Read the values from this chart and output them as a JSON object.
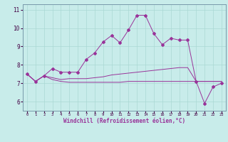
{
  "xlabel": "Windchill (Refroidissement éolien,°C)",
  "background_color": "#c8ecea",
  "grid_color": "#aad8d4",
  "line_color": "#993399",
  "border_color": "#7799aa",
  "x_values": [
    0,
    1,
    2,
    3,
    4,
    5,
    6,
    7,
    8,
    9,
    10,
    11,
    12,
    13,
    14,
    15,
    16,
    17,
    18,
    19,
    20,
    21,
    22,
    23
  ],
  "series1": [
    7.5,
    7.1,
    7.4,
    7.8,
    7.6,
    7.6,
    7.6,
    8.3,
    8.65,
    9.25,
    9.6,
    9.2,
    9.9,
    10.7,
    10.7,
    9.7,
    9.1,
    9.45,
    9.35,
    9.35,
    7.1,
    5.9,
    6.8,
    7.0
  ],
  "series2": [
    7.5,
    7.1,
    7.4,
    7.3,
    7.2,
    7.25,
    7.25,
    7.25,
    7.3,
    7.35,
    7.45,
    7.5,
    7.55,
    7.6,
    7.65,
    7.7,
    7.75,
    7.8,
    7.85,
    7.85,
    7.1,
    7.1,
    7.1,
    7.1
  ],
  "series3": [
    7.5,
    7.1,
    7.4,
    7.2,
    7.1,
    7.05,
    7.05,
    7.05,
    7.05,
    7.05,
    7.05,
    7.05,
    7.1,
    7.1,
    7.1,
    7.1,
    7.1,
    7.1,
    7.1,
    7.1,
    7.1,
    7.1,
    7.1,
    7.1
  ],
  "ylim": [
    5.5,
    11.3
  ],
  "yticks": [
    6,
    7,
    8,
    9,
    10,
    11
  ],
  "xticks": [
    0,
    1,
    2,
    3,
    4,
    5,
    6,
    7,
    8,
    9,
    10,
    11,
    12,
    13,
    14,
    15,
    16,
    17,
    18,
    19,
    20,
    21,
    22,
    23
  ]
}
